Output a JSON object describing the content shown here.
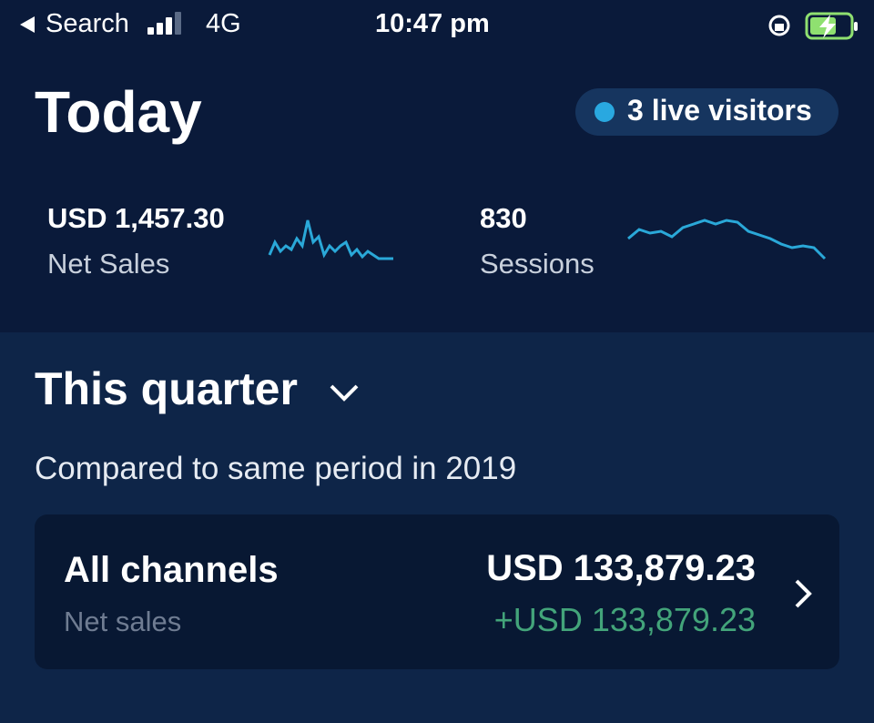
{
  "status_bar": {
    "back_label": "Search",
    "network": "4G",
    "time": "10:47 pm"
  },
  "today": {
    "title": "Today",
    "live_visitors": "3 live visitors",
    "net_sales": {
      "value": "USD 1,457.30",
      "label": "Net Sales"
    },
    "sessions": {
      "value": "830",
      "label": "Sessions"
    }
  },
  "quarter": {
    "title": "This quarter",
    "comparison": "Compared to same period in 2019",
    "card": {
      "title": "All channels",
      "subtitle": "Net sales",
      "value": "USD 133,879.23",
      "change": "+USD 133,879.23"
    }
  }
}
